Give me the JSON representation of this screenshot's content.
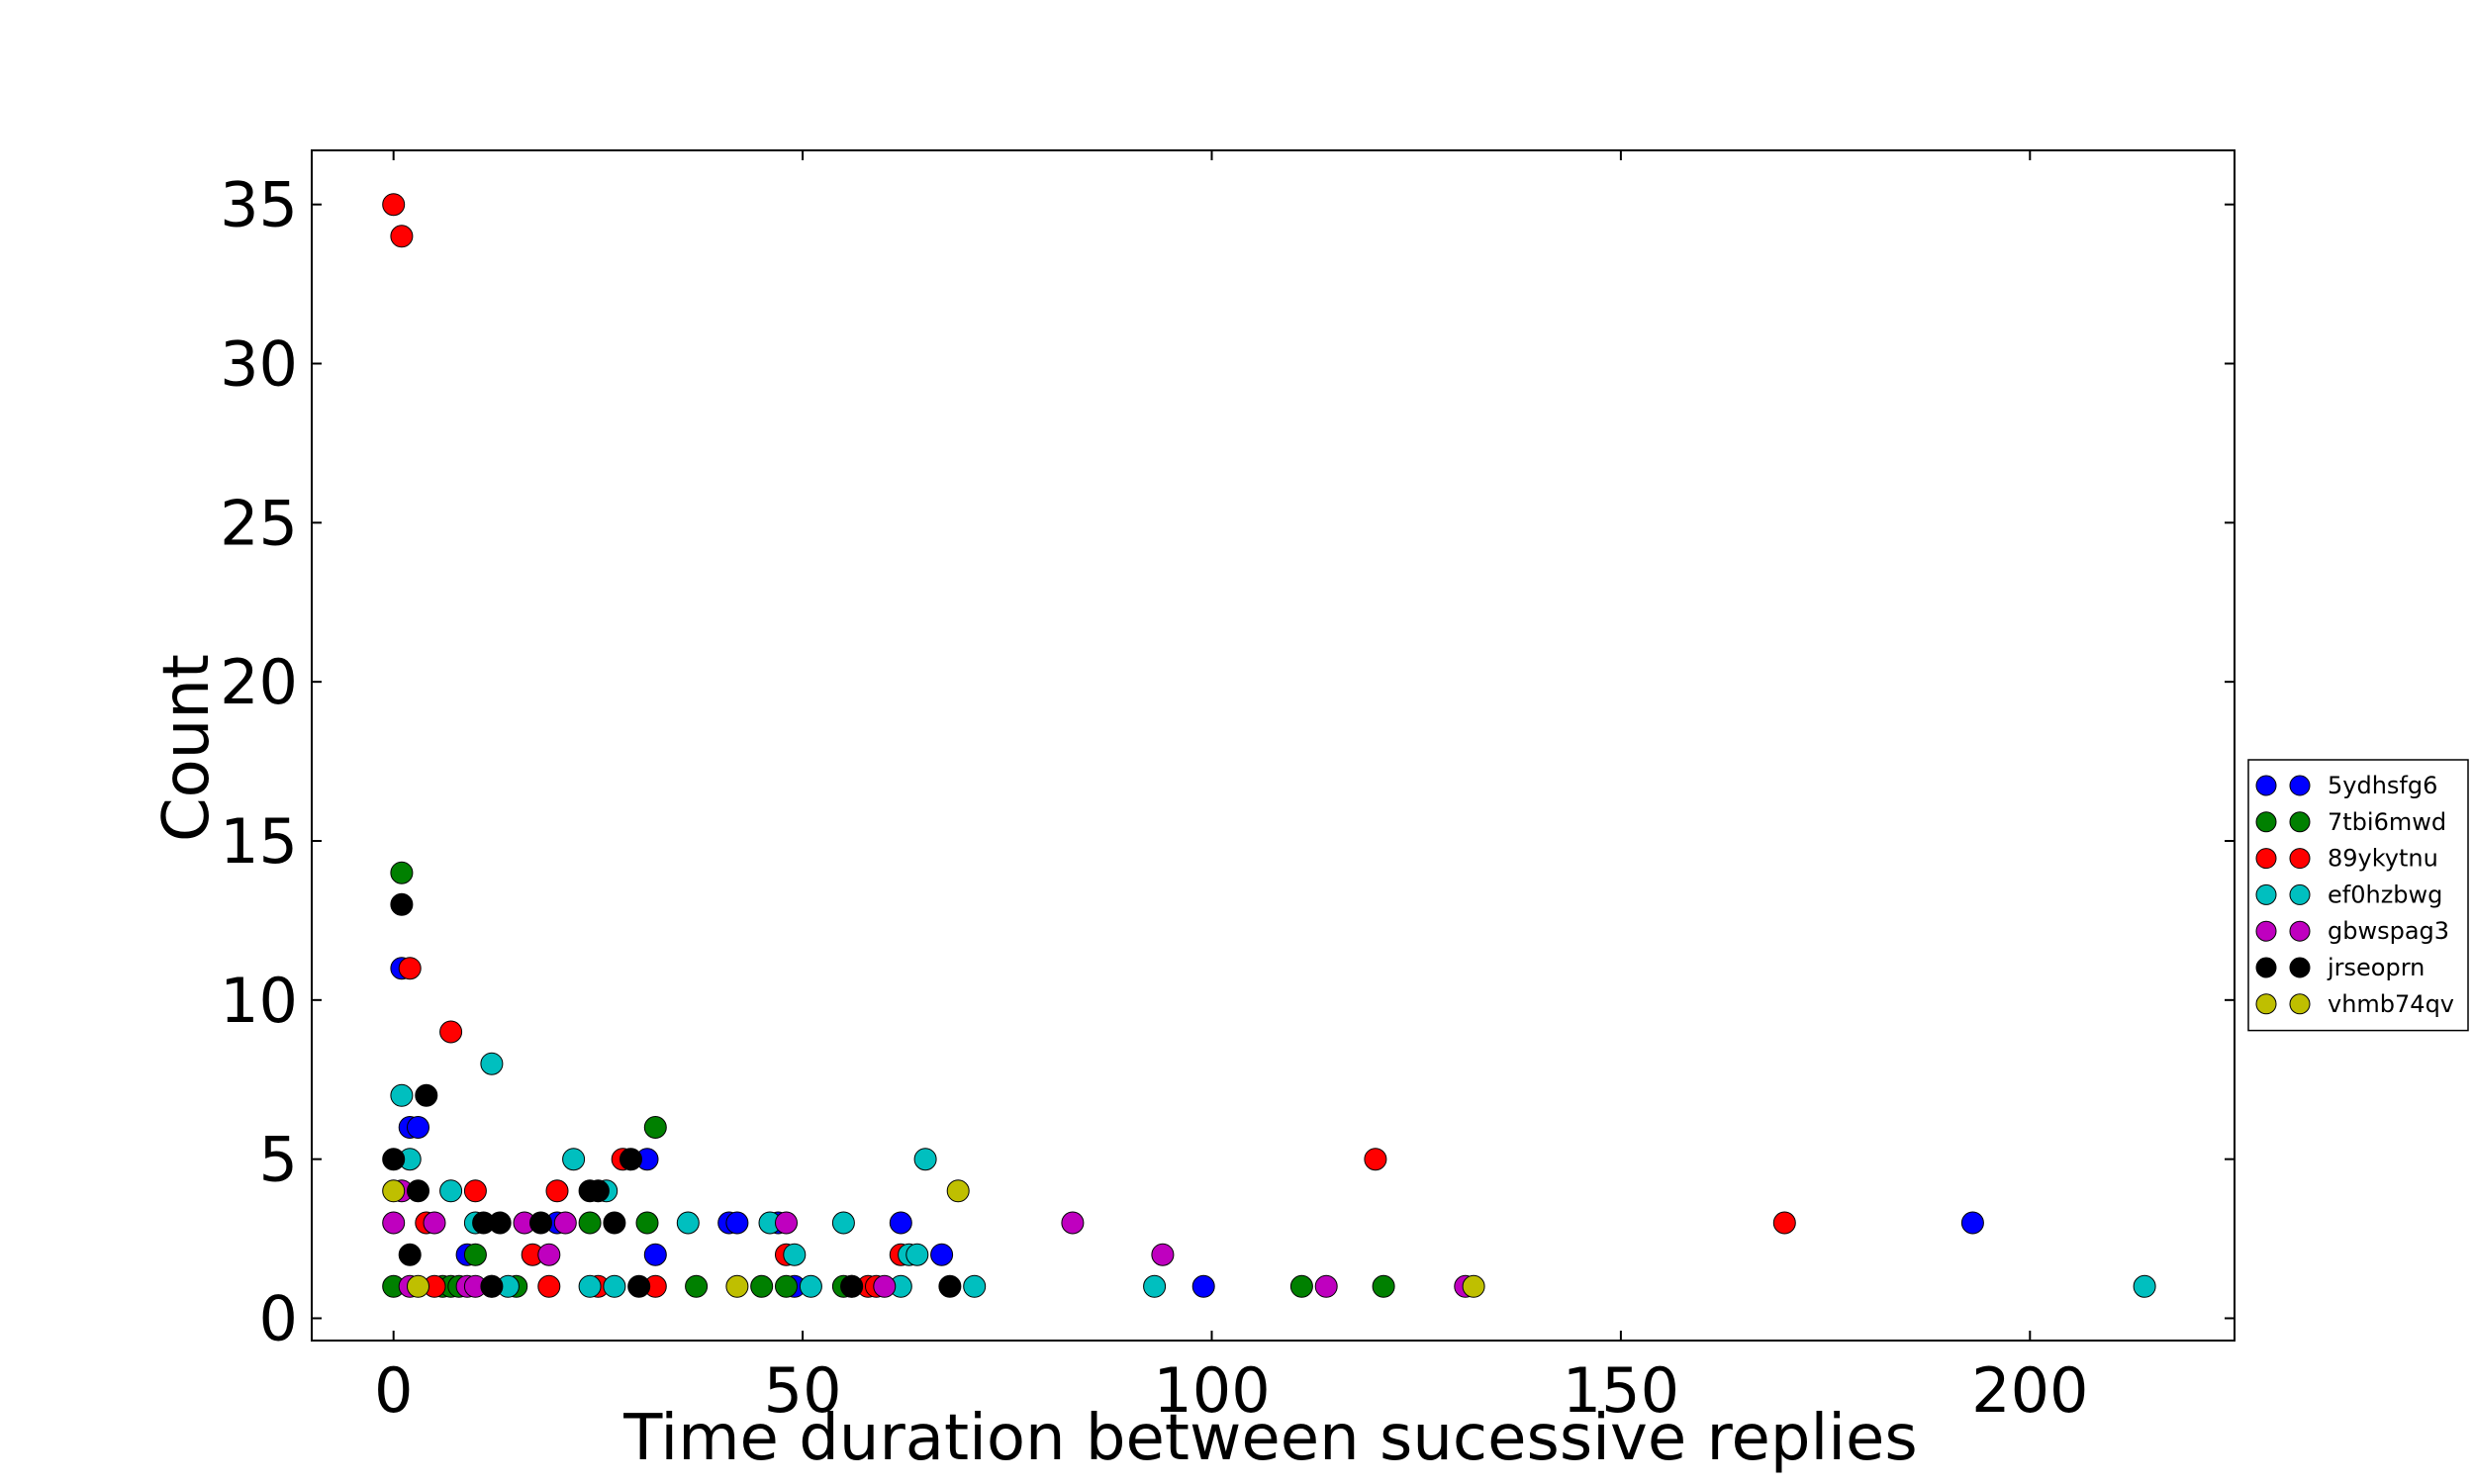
{
  "chart_data": {
    "type": "scatter",
    "title": "",
    "xlabel": "Time duration between sucessive replies",
    "ylabel": "Count",
    "xlim": [
      -10,
      225
    ],
    "ylim": [
      -0.7,
      36.7
    ],
    "xticks": [
      0,
      50,
      100,
      150,
      200
    ],
    "yticks": [
      0,
      5,
      10,
      15,
      20,
      25,
      30,
      35
    ],
    "grid": false,
    "legend_position": "right-outside",
    "series": [
      {
        "name": "5ydhsfg6",
        "color": "#0000ff",
        "points": [
          [
            1,
            11
          ],
          [
            2,
            6
          ],
          [
            3,
            6
          ],
          [
            9,
            2
          ],
          [
            12,
            1
          ],
          [
            20,
            3
          ],
          [
            31,
            5
          ],
          [
            32,
            2
          ],
          [
            41,
            3
          ],
          [
            42,
            3
          ],
          [
            47,
            3
          ],
          [
            49,
            1
          ],
          [
            62,
            3
          ],
          [
            67,
            2
          ],
          [
            99,
            1
          ],
          [
            193,
            3
          ]
        ]
      },
      {
        "name": "7tbi6mwd",
        "color": "#008000",
        "points": [
          [
            0,
            1
          ],
          [
            1,
            14
          ],
          [
            6,
            1
          ],
          [
            7,
            1
          ],
          [
            8,
            1
          ],
          [
            10,
            2
          ],
          [
            15,
            1
          ],
          [
            24,
            3
          ],
          [
            31,
            3
          ],
          [
            32,
            6
          ],
          [
            37,
            1
          ],
          [
            45,
            1
          ],
          [
            48,
            1
          ],
          [
            55,
            1
          ],
          [
            111,
            1
          ],
          [
            121,
            1
          ]
        ]
      },
      {
        "name": "89ykytnu",
        "color": "#ff0000",
        "points": [
          [
            0,
            35
          ],
          [
            1,
            34
          ],
          [
            2,
            11
          ],
          [
            4,
            3
          ],
          [
            5,
            1
          ],
          [
            7,
            9
          ],
          [
            10,
            4
          ],
          [
            17,
            2
          ],
          [
            19,
            1
          ],
          [
            20,
            4
          ],
          [
            25,
            1
          ],
          [
            28,
            5
          ],
          [
            32,
            1
          ],
          [
            48,
            2
          ],
          [
            56,
            1
          ],
          [
            58,
            1
          ],
          [
            59,
            1
          ],
          [
            62,
            2
          ],
          [
            120,
            5
          ],
          [
            170,
            3
          ]
        ]
      },
      {
        "name": "ef0hzbwg",
        "color": "#00bfbf",
        "points": [
          [
            1,
            7
          ],
          [
            2,
            5
          ],
          [
            7,
            4
          ],
          [
            10,
            3
          ],
          [
            12,
            8
          ],
          [
            14,
            1
          ],
          [
            22,
            5
          ],
          [
            24,
            1
          ],
          [
            26,
            4
          ],
          [
            27,
            1
          ],
          [
            36,
            3
          ],
          [
            46,
            3
          ],
          [
            49,
            2
          ],
          [
            51,
            1
          ],
          [
            55,
            3
          ],
          [
            62,
            1
          ],
          [
            63,
            2
          ],
          [
            64,
            2
          ],
          [
            65,
            5
          ],
          [
            71,
            1
          ],
          [
            93,
            1
          ],
          [
            214,
            1
          ]
        ]
      },
      {
        "name": "gbwspag3",
        "color": "#bf00bf",
        "points": [
          [
            0,
            3
          ],
          [
            1,
            4
          ],
          [
            2,
            1
          ],
          [
            5,
            3
          ],
          [
            9,
            1
          ],
          [
            10,
            1
          ],
          [
            16,
            3
          ],
          [
            19,
            2
          ],
          [
            21,
            3
          ],
          [
            48,
            3
          ],
          [
            60,
            1
          ],
          [
            83,
            3
          ],
          [
            94,
            2
          ],
          [
            114,
            1
          ],
          [
            131,
            1
          ]
        ]
      },
      {
        "name": "jrseoprn",
        "color": "#000000",
        "points": [
          [
            0,
            5
          ],
          [
            1,
            13
          ],
          [
            2,
            2
          ],
          [
            3,
            4
          ],
          [
            4,
            7
          ],
          [
            11,
            3
          ],
          [
            12,
            1
          ],
          [
            13,
            3
          ],
          [
            18,
            3
          ],
          [
            24,
            4
          ],
          [
            25,
            4
          ],
          [
            27,
            3
          ],
          [
            29,
            5
          ],
          [
            30,
            1
          ],
          [
            56,
            1
          ],
          [
            68,
            1
          ]
        ]
      },
      {
        "name": "vhmb74qv",
        "color": "#bfbf00",
        "points": [
          [
            0,
            4
          ],
          [
            3,
            1
          ],
          [
            42,
            1
          ],
          [
            69,
            4
          ],
          [
            132,
            1
          ]
        ]
      }
    ]
  }
}
